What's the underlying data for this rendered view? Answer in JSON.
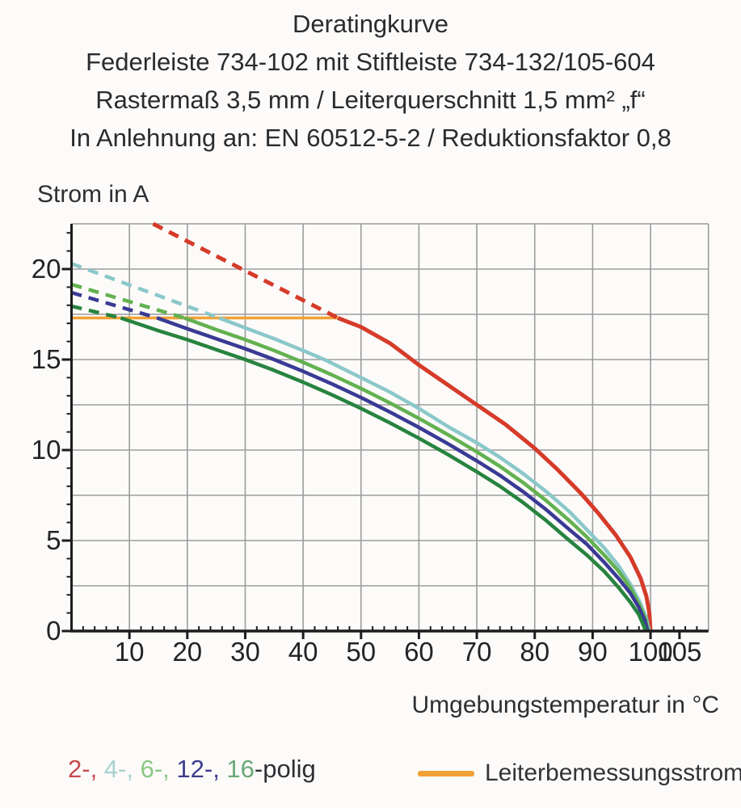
{
  "header": {
    "lines": [
      "Deratingkurve",
      "Federleiste 734-102 mit Stiftleiste 734-132/105-604",
      "Rastermaß 3,5 mm / Leiterquerschnitt 1,5 mm² „f“",
      "In Anlehnung an: EN 60512-5-2 / Reduktionsfaktor 0,8"
    ]
  },
  "chart_data": {
    "type": "line",
    "title": "Deratingkurve",
    "xlabel": "Umgebungstemperatur in °C",
    "ylabel": "Strom in A",
    "xlim": [
      0,
      110
    ],
    "ylim": [
      0,
      22.5
    ],
    "grid": true,
    "grid_color": "#9c9c9c",
    "axis_color": "#1c1c1c",
    "x_grid_step": 10,
    "y_grid_step": 2.5,
    "x_minor_step": 2,
    "y_minor_step": 1,
    "x_major_ticks": [
      10,
      20,
      30,
      40,
      50,
      60,
      70,
      80,
      90,
      100,
      105
    ],
    "y_major_ticks": [
      0,
      5,
      10,
      15,
      20
    ],
    "legend_position": "bottom",
    "rated_current_line": {
      "label": "Leiterbemessungsstrom",
      "value_a": 17.3,
      "x_start": 0,
      "x_end": 46,
      "color": "#f2a136"
    },
    "series": [
      {
        "name": "2-polig",
        "color": "#d63b2a",
        "width": 5,
        "style_left_of_rated": "dashed",
        "dashed": [
          [
            14.1,
            22.5
          ],
          [
            46,
            17.3
          ]
        ],
        "solid": [
          [
            46,
            17.3
          ],
          [
            50,
            16.8
          ],
          [
            55,
            15.9
          ],
          [
            60,
            14.7
          ],
          [
            65,
            13.6
          ],
          [
            70,
            12.5
          ],
          [
            75,
            11.4
          ],
          [
            80,
            10.1
          ],
          [
            84,
            8.9
          ],
          [
            88,
            7.6
          ],
          [
            91,
            6.5
          ],
          [
            94,
            5.3
          ],
          [
            96.5,
            4.1
          ],
          [
            98.3,
            2.9
          ],
          [
            99.3,
            1.9
          ],
          [
            99.8,
            1.0
          ],
          [
            100,
            0
          ]
        ]
      },
      {
        "name": "4-polig",
        "color": "#8bc8ca",
        "width": 4.5,
        "style_left_of_rated": "dashed",
        "dashed": [
          [
            0,
            20.3
          ],
          [
            25.5,
            17.3
          ]
        ],
        "solid": [
          [
            25.5,
            17.3
          ],
          [
            30,
            16.75
          ],
          [
            35,
            16.15
          ],
          [
            40,
            15.5
          ],
          [
            44,
            14.95
          ],
          [
            50,
            14.0
          ],
          [
            55,
            13.2
          ],
          [
            60,
            12.3
          ],
          [
            65,
            11.3
          ],
          [
            70,
            10.4
          ],
          [
            74,
            9.6
          ],
          [
            78,
            8.7
          ],
          [
            82,
            7.7
          ],
          [
            86,
            6.6
          ],
          [
            89,
            5.6
          ],
          [
            92,
            4.6
          ],
          [
            94.5,
            3.6
          ],
          [
            96.5,
            2.6
          ],
          [
            98,
            1.7
          ],
          [
            99.2,
            0.8
          ],
          [
            99.8,
            0
          ]
        ]
      },
      {
        "name": "6-polig",
        "color": "#63b150",
        "width": 4.5,
        "style_left_of_rated": "dashed",
        "dashed": [
          [
            0,
            19.15
          ],
          [
            19.5,
            17.3
          ]
        ],
        "solid": [
          [
            19.5,
            17.3
          ],
          [
            25,
            16.65
          ],
          [
            30,
            16.1
          ],
          [
            35,
            15.5
          ],
          [
            40,
            14.85
          ],
          [
            45,
            14.15
          ],
          [
            50,
            13.4
          ],
          [
            55,
            12.6
          ],
          [
            60,
            11.75
          ],
          [
            65,
            10.85
          ],
          [
            70,
            9.9
          ],
          [
            74,
            9.1
          ],
          [
            78,
            8.2
          ],
          [
            82,
            7.2
          ],
          [
            86,
            6.1
          ],
          [
            89,
            5.2
          ],
          [
            92,
            4.2
          ],
          [
            94.5,
            3.3
          ],
          [
            96.5,
            2.4
          ],
          [
            98,
            1.5
          ],
          [
            99.1,
            0.7
          ],
          [
            99.6,
            0
          ]
        ]
      },
      {
        "name": "12-polig",
        "color": "#3a3a95",
        "width": 4.5,
        "style_left_of_rated": "dashed",
        "dashed": [
          [
            0,
            18.7
          ],
          [
            14.8,
            17.3
          ]
        ],
        "solid": [
          [
            14.8,
            17.3
          ],
          [
            20,
            16.7
          ],
          [
            25,
            16.15
          ],
          [
            30,
            15.6
          ],
          [
            35,
            15.0
          ],
          [
            40,
            14.35
          ],
          [
            45,
            13.65
          ],
          [
            50,
            12.9
          ],
          [
            55,
            12.1
          ],
          [
            60,
            11.25
          ],
          [
            65,
            10.35
          ],
          [
            70,
            9.4
          ],
          [
            74,
            8.6
          ],
          [
            78,
            7.7
          ],
          [
            82,
            6.7
          ],
          [
            86,
            5.6
          ],
          [
            89,
            4.8
          ],
          [
            92,
            3.8
          ],
          [
            94.5,
            2.9
          ],
          [
            96.5,
            2.1
          ],
          [
            98,
            1.3
          ],
          [
            99,
            0.6
          ],
          [
            99.5,
            0
          ]
        ]
      },
      {
        "name": "16-polig",
        "color": "#27833f",
        "width": 4.5,
        "style_left_of_rated": "dashed",
        "dashed": [
          [
            0,
            17.95
          ],
          [
            8.5,
            17.3
          ]
        ],
        "solid": [
          [
            8.5,
            17.3
          ],
          [
            15,
            16.6
          ],
          [
            20,
            16.1
          ],
          [
            25,
            15.55
          ],
          [
            30,
            15.0
          ],
          [
            35,
            14.4
          ],
          [
            40,
            13.75
          ],
          [
            45,
            13.05
          ],
          [
            50,
            12.3
          ],
          [
            55,
            11.5
          ],
          [
            60,
            10.65
          ],
          [
            65,
            9.75
          ],
          [
            70,
            8.8
          ],
          [
            74,
            8.0
          ],
          [
            78,
            7.1
          ],
          [
            82,
            6.1
          ],
          [
            86,
            5.0
          ],
          [
            89,
            4.2
          ],
          [
            92,
            3.3
          ],
          [
            94.5,
            2.4
          ],
          [
            96.5,
            1.6
          ],
          [
            98,
            0.9
          ],
          [
            99.2,
            0
          ]
        ]
      }
    ]
  },
  "legend": {
    "pole_items": [
      {
        "name": "2-polig",
        "text": "2-, ",
        "color": "#c84a50"
      },
      {
        "name": "4-polig",
        "text": "4-, ",
        "color": "#a8d2d0"
      },
      {
        "name": "6-polig",
        "text": "6-, ",
        "color": "#8cc887"
      },
      {
        "name": "12-polig",
        "text": "12-, ",
        "color": "#3c3c8e"
      },
      {
        "name": "16-polig",
        "text": "16",
        "color": "#6aa878"
      },
      {
        "name": "polig-suffix",
        "text": "-polig",
        "color": "#2e2e34"
      }
    ],
    "rated": {
      "label": "Leiterbemessungsstrom",
      "color": "#f2a136"
    }
  }
}
